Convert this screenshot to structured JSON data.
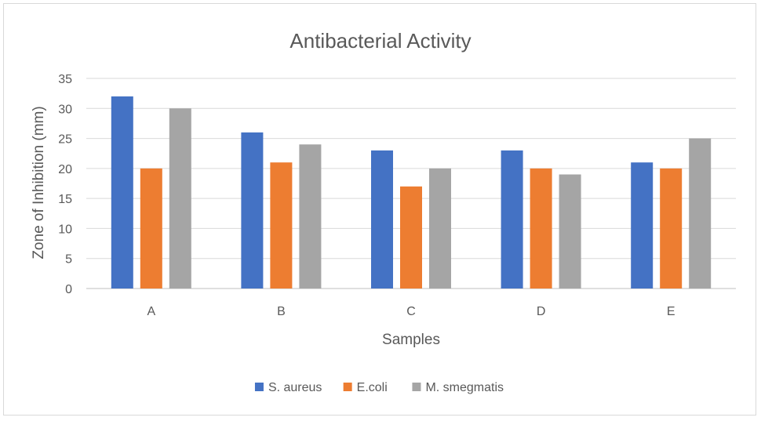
{
  "chart_data": {
    "type": "bar",
    "title": "Antibacterial Activity",
    "xlabel": "Samples",
    "ylabel": "Zone of Inhibition (mm)",
    "categories": [
      "A",
      "B",
      "C",
      "D",
      "E"
    ],
    "ylim": [
      0,
      35
    ],
    "yticks": [
      0,
      5,
      10,
      15,
      20,
      25,
      30,
      35
    ],
    "grid": true,
    "legend_position": "bottom",
    "series": [
      {
        "name": "S. aureus",
        "color": "#4472c4",
        "values": [
          32,
          26,
          23,
          23,
          21
        ]
      },
      {
        "name": "E.coli",
        "color": "#ed7d31",
        "values": [
          20,
          21,
          17,
          20,
          20
        ]
      },
      {
        "name": "M. smegmatis",
        "color": "#a5a5a5",
        "values": [
          30,
          24,
          20,
          19,
          25
        ]
      }
    ]
  }
}
